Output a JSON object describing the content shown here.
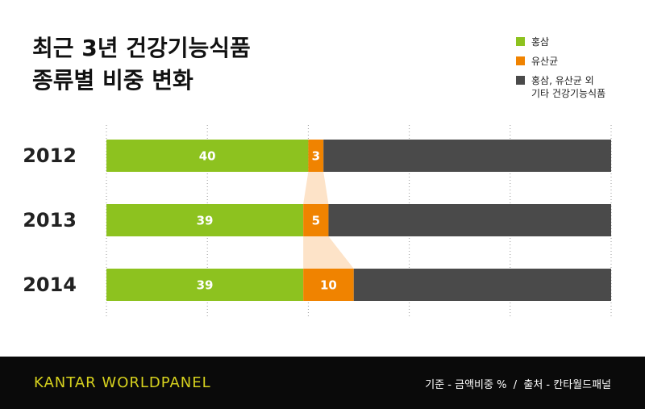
{
  "chart_data": {
    "type": "stacked-barh",
    "title": "최근 3년 건강기능식품\n종류별 비중 변화",
    "categories": [
      "2012",
      "2013",
      "2014"
    ],
    "series": [
      {
        "name": "홍삼",
        "color": "#8dc21f",
        "values": [
          40,
          39,
          39
        ]
      },
      {
        "name": "유산균",
        "color": "#f08300",
        "values": [
          3,
          5,
          10
        ]
      },
      {
        "name": "홍삼, 유산균 외\n기타 건강기능식품",
        "color": "#4a4a4a",
        "values": [
          57,
          56,
          51
        ]
      }
    ],
    "labeled_series": [
      0,
      1
    ],
    "xlim": [
      0,
      100
    ],
    "xticks": [
      0,
      20,
      40,
      60,
      80,
      100
    ],
    "grid": true,
    "connector_color": "#fde3c8",
    "footer": {
      "brand": "KANTAR WORLDPANEL",
      "note": "기준 - 금액비중 %  /  출처 - 칸타월드패널"
    }
  }
}
